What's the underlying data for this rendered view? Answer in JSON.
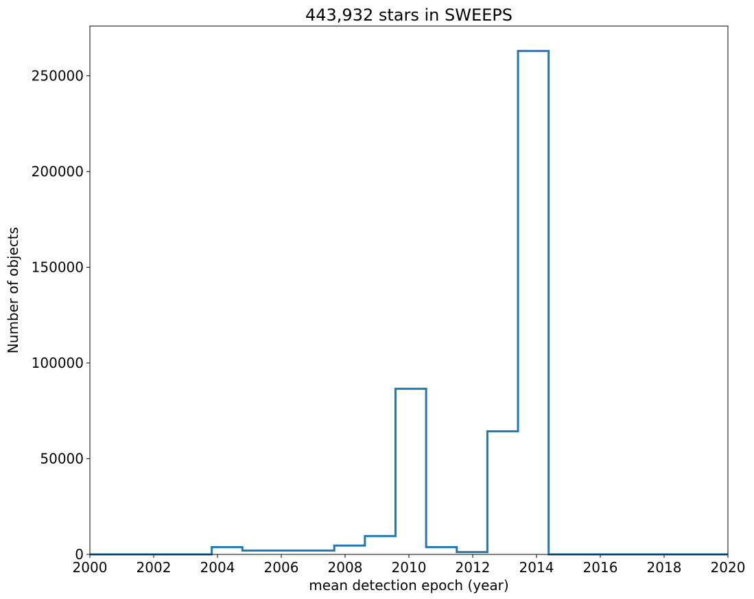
{
  "chart_data": {
    "type": "histogram",
    "title": "443,932 stars in SWEEPS",
    "xlabel": "mean detection epoch (year)",
    "ylabel": "Number of objects",
    "xlim": [
      2000,
      2020
    ],
    "ylim": [
      0,
      276000
    ],
    "xticks": [
      2000,
      2002,
      2004,
      2006,
      2008,
      2010,
      2012,
      2014,
      2016,
      2018,
      2020
    ],
    "yticks": [
      0,
      50000,
      100000,
      150000,
      200000,
      250000
    ],
    "step_x": [
      2000.0,
      2003.82,
      2004.78,
      2005.74,
      2006.7,
      2007.66,
      2008.62,
      2009.58,
      2010.54,
      2011.5,
      2012.46,
      2013.42,
      2014.38,
      2020.0
    ],
    "step_y": [
      0,
      3800,
      2000,
      2000,
      2000,
      4600,
      9600,
      86500,
      3800,
      1200,
      64300,
      263000,
      0
    ],
    "series": [
      {
        "color": "#1f77b4"
      }
    ],
    "grid": false
  }
}
